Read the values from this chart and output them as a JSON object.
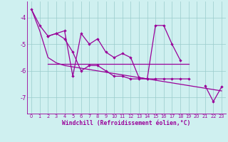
{
  "xlabel": "Windchill (Refroidissement éolien,°C)",
  "xlim": [
    -0.5,
    23.5
  ],
  "ylim": [
    -7.6,
    -3.4
  ],
  "yticks": [
    -7,
    -6,
    -5,
    -4
  ],
  "xticks": [
    0,
    1,
    2,
    3,
    4,
    5,
    6,
    7,
    8,
    9,
    10,
    11,
    12,
    13,
    14,
    15,
    16,
    17,
    18,
    19,
    20,
    21,
    22,
    23
  ],
  "bg_color": "#cff0f0",
  "line_color": "#990099",
  "grid_color": "#99cccc",
  "series_spiky": [
    -3.7,
    -4.3,
    -4.7,
    -4.6,
    -4.5,
    -6.2,
    -4.6,
    -5.0,
    -4.8,
    -5.3,
    -5.5,
    -5.35,
    -5.5,
    -6.25,
    -6.3,
    -4.3,
    -4.3,
    -5.0,
    -5.6,
    null,
    null,
    -6.55,
    -7.15,
    -6.6
  ],
  "series_smooth": [
    null,
    null,
    -4.7,
    -4.6,
    -4.8,
    -5.3,
    -6.0,
    -5.8,
    -5.8,
    -6.0,
    -6.2,
    -6.2,
    -6.3,
    -6.3,
    -6.3,
    -6.3,
    -6.3,
    -6.3,
    -6.3,
    -6.3,
    null,
    null,
    null,
    null
  ],
  "series_flat": [
    null,
    null,
    -5.75,
    -5.75,
    -5.75,
    -5.75,
    -5.75,
    -5.75,
    -5.75,
    -5.75,
    -5.75,
    -5.75,
    -5.75,
    -5.75,
    -5.75,
    -5.75,
    -5.75,
    -5.75,
    -5.75,
    -5.75,
    null,
    null,
    null,
    null
  ],
  "series_decline": [
    -3.7,
    -4.5,
    -5.5,
    -5.7,
    -5.8,
    -5.85,
    -5.9,
    -5.95,
    -6.0,
    -6.05,
    -6.1,
    -6.15,
    -6.2,
    -6.25,
    -6.3,
    -6.35,
    -6.4,
    -6.45,
    -6.5,
    -6.55,
    -6.6,
    -6.65,
    -6.7,
    -6.75
  ]
}
